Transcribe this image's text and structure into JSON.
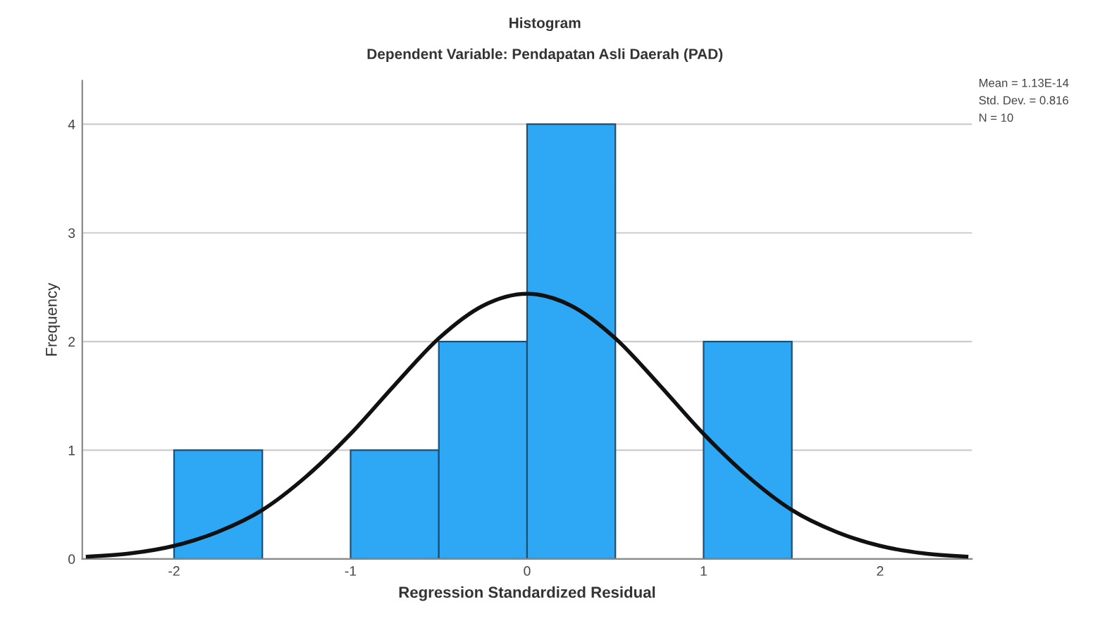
{
  "chart_data": {
    "type": "histogram",
    "title": "Histogram",
    "subtitle": "Dependent Variable: Pendapatan Asli Daerah (PAD)",
    "xlabel": "Regression Standardized Residual",
    "ylabel": "Frequency",
    "bins": [
      -2,
      -1.5,
      -1,
      -0.5,
      0,
      0.5,
      1,
      1.5
    ],
    "values": [
      1,
      0,
      1,
      2,
      4,
      0,
      2
    ],
    "color": "#2ea8f5",
    "series": [
      {
        "type": "line",
        "color": "#111111",
        "x": [
          -2.5,
          -2.25,
          -2,
          -1.75,
          -1.5,
          -1.25,
          -1,
          -0.75,
          -0.5,
          -0.25,
          0,
          0.25,
          0.5,
          0.75,
          1,
          1.25,
          1.5,
          1.75,
          2,
          2.25,
          2.5
        ],
        "values": [
          0.02,
          0.05,
          0.12,
          0.25,
          0.45,
          0.76,
          1.15,
          1.6,
          2.03,
          2.33,
          2.44,
          2.33,
          2.03,
          1.6,
          1.15,
          0.76,
          0.45,
          0.25,
          0.12,
          0.05,
          0.02
        ]
      }
    ],
    "xlim": [
      -2.52,
      2.52
    ],
    "ylim": [
      0,
      4.4
    ],
    "xticks": [
      -2,
      -1,
      0,
      1,
      2
    ],
    "yticks": [
      0,
      1,
      2,
      3,
      4
    ],
    "grid": "y",
    "annotations": [
      "Mean = 1.13E-14",
      "Std. Dev. = 0.816",
      "N = 10"
    ]
  }
}
